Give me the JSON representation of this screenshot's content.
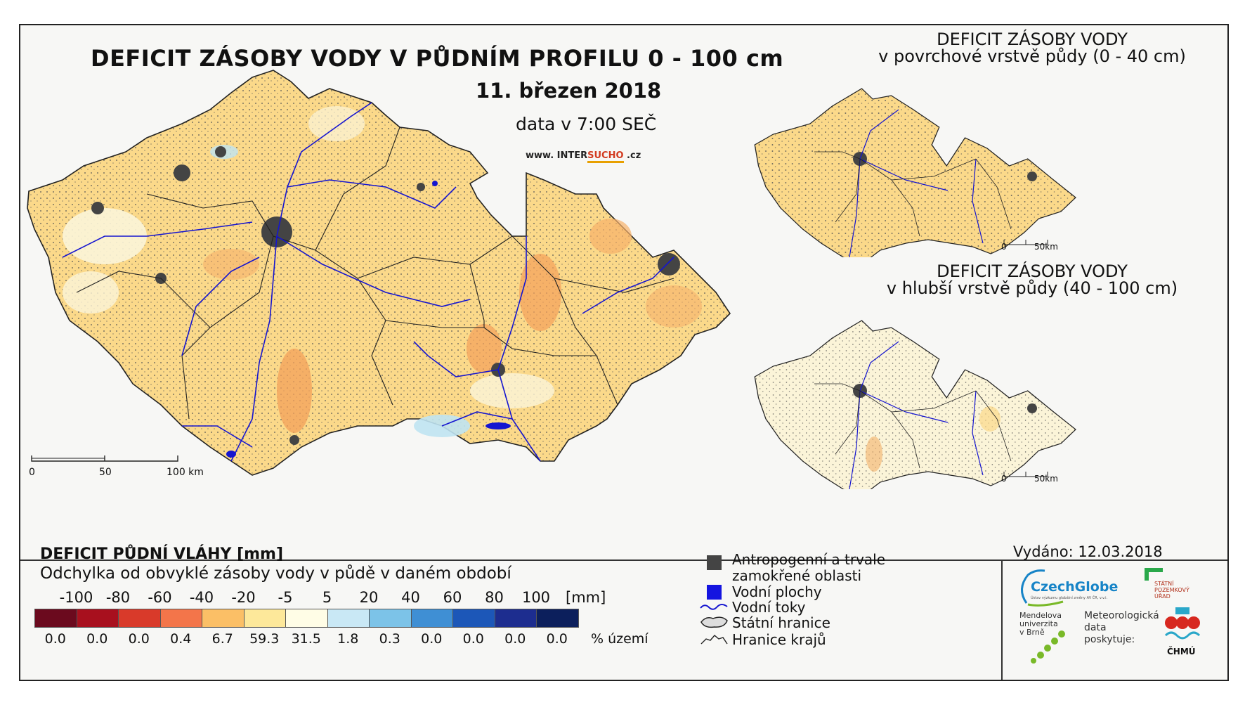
{
  "header": {
    "title": "DEFICIT ZÁSOBY VODY V PŮDNÍM PROFILU 0 - 100 cm",
    "date": "11. březen 2018",
    "time": "data v 7:00 SEČ",
    "website_prefix": "www. INTER",
    "website_highlight": "SUCHO",
    "website_suffix": " .cz"
  },
  "main_map": {
    "scale_labels": [
      "0",
      "50",
      "100 km"
    ]
  },
  "inset_top": {
    "title_line1": "DEFICIT ZÁSOBY VODY",
    "title_line2": "v povrchové vrstvě půdy (0 - 40 cm)",
    "scale_labels": [
      "0",
      "50km"
    ]
  },
  "inset_bottom": {
    "title_line1": "DEFICIT ZÁSOBY VODY",
    "title_line2": "v hlubší vrstvě půdy (40 - 100 cm)",
    "scale_labels": [
      "0",
      "50km"
    ]
  },
  "legend": {
    "title": "DEFICIT PŮDNÍ VLÁHY [mm]",
    "subtitle": "Odchylka od obvyklé zásoby vody v půdě v daném období",
    "ticks": [
      "-100",
      "-80",
      "-60",
      "-40",
      "-20",
      "-5",
      "5",
      "20",
      "40",
      "60",
      "80",
      "100"
    ],
    "unit": "[mm]",
    "colors": [
      "#6b0a1e",
      "#a8101e",
      "#d93a2a",
      "#f3754a",
      "#fbbf66",
      "#fde89a",
      "#fffde6",
      "#c9e8f5",
      "#7cc3e8",
      "#3f8fd4",
      "#1c57b8",
      "#1d2d8f",
      "#0c1f5c"
    ],
    "percentages": [
      "0.0",
      "0.0",
      "0.0",
      "0.4",
      "6.7",
      "59.3",
      "31.5",
      "1.8",
      "0.3",
      "0.0",
      "0.0",
      "0.0",
      "0.0"
    ],
    "percent_label": "% území"
  },
  "symbols": {
    "anthropogenic_line1": "Antropogenní a trvale",
    "anthropogenic_line2": "zamokřené oblasti",
    "water_bodies": "Vodní plochy",
    "rivers": "Vodní toky",
    "state_border": "Státní hranice",
    "region_border": "Hranice krajů"
  },
  "footer": {
    "issued": "Vydáno: 12.03.2018",
    "logo_czechglobe": "CzechGlobe",
    "logo_czechglobe_sub": "Ústav výzkumu globální změny AV ČR, v.v.i.",
    "logo_spu": [
      "STÁTNÍ",
      "POZEMKOVÝ",
      "ÚŘAD"
    ],
    "logo_mendelu": [
      "Mendelova",
      "univerzita",
      "v Brně"
    ],
    "meteo_text": [
      "Meteorologická",
      "data",
      "poskytuje:"
    ],
    "logo_chmu": "ČHMÚ"
  }
}
